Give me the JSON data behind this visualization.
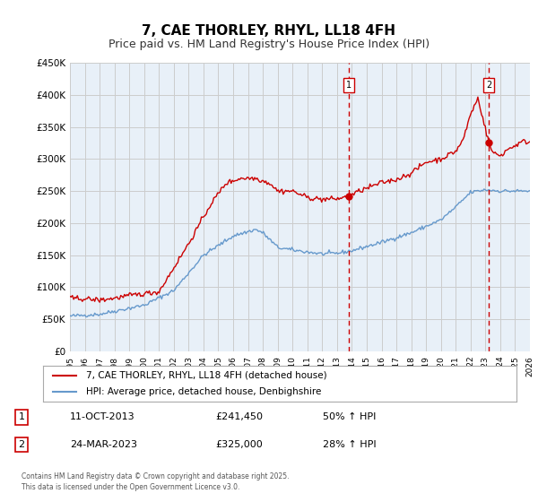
{
  "title": "7, CAE THORLEY, RHYL, LL18 4FH",
  "subtitle": "Price paid vs. HM Land Registry's House Price Index (HPI)",
  "ylabel_ticks": [
    "£0",
    "£50K",
    "£100K",
    "£150K",
    "£200K",
    "£250K",
    "£300K",
    "£350K",
    "£400K",
    "£450K"
  ],
  "ylim": [
    0,
    450000
  ],
  "xlim_start": 1995.0,
  "xlim_end": 2026.0,
  "marker1_x": 2013.79,
  "marker1_y": 241450,
  "marker1_label": "1",
  "marker1_date": "11-OCT-2013",
  "marker1_price": "£241,450",
  "marker1_hpi": "50% ↑ HPI",
  "marker2_x": 2023.23,
  "marker2_y": 325000,
  "marker2_label": "2",
  "marker2_date": "24-MAR-2023",
  "marker2_price": "£325,000",
  "marker2_hpi": "28% ↑ HPI",
  "red_color": "#cc0000",
  "blue_color": "#6699cc",
  "vline_color": "#cc0000",
  "grid_color": "#cccccc",
  "bg_color": "#e8f0f8",
  "legend_label_red": "7, CAE THORLEY, RHYL, LL18 4FH (detached house)",
  "legend_label_blue": "HPI: Average price, detached house, Denbighshire",
  "footnote": "Contains HM Land Registry data © Crown copyright and database right 2025.\nThis data is licensed under the Open Government Licence v3.0.",
  "title_fontsize": 11,
  "subtitle_fontsize": 9,
  "hpi_waypoints_x": [
    1995,
    1997,
    2000,
    2002,
    2004,
    2006,
    2007.5,
    2008,
    2009,
    2010,
    2012,
    2013,
    2014,
    2016,
    2018,
    2019,
    2020,
    2021,
    2022,
    2023,
    2024,
    2025.5
  ],
  "hpi_waypoints_y": [
    55000,
    58000,
    72000,
    95000,
    150000,
    180000,
    190000,
    185000,
    162000,
    158000,
    152000,
    153000,
    157000,
    170000,
    185000,
    195000,
    205000,
    225000,
    248000,
    252000,
    250000,
    250000
  ],
  "prop_waypoints_x": [
    1995,
    1996,
    1997,
    1998,
    1999,
    2001,
    2003,
    2004.5,
    2005.5,
    2006.5,
    2007.5,
    2008.5,
    2009,
    2010,
    2011,
    2012,
    2013,
    2013.8,
    2014.5,
    2016,
    2017,
    2018,
    2019,
    2020,
    2021,
    2021.5,
    2022,
    2022.5,
    2023.23,
    2023.5,
    2024,
    2024.5,
    2025.5
  ],
  "prop_waypoints_y": [
    83000,
    82000,
    80000,
    83000,
    87000,
    93000,
    168000,
    230000,
    262000,
    270000,
    270000,
    262000,
    250000,
    250000,
    240000,
    237000,
    238000,
    241450,
    250000,
    263000,
    268000,
    278000,
    295000,
    300000,
    312000,
    330000,
    370000,
    395000,
    325000,
    310000,
    305000,
    315000,
    327000
  ]
}
